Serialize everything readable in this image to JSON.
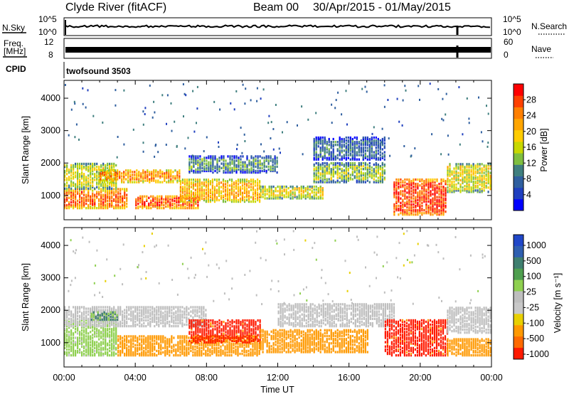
{
  "header": {
    "station": "Clyde River (fitACF)",
    "beam": "Beam 00",
    "date_range": "30/Apr/2015 - 01/May/2015"
  },
  "strips": {
    "nsky_label": "N.Sky",
    "nsky_ticks": [
      "10^5",
      "10^0"
    ],
    "nsearch_label": "N.Search",
    "nsearch_ticks": [
      "10^5",
      "10^0"
    ],
    "freq_label_1": "Freq.",
    "freq_label_2": "[MHz]",
    "freq_ticks": [
      "12",
      "8"
    ],
    "nave_label": "Nave",
    "nave_ticks": [
      "60",
      "0"
    ],
    "cpid_label": "CPID",
    "cpid_value": "twofsound 3503"
  },
  "colors": {
    "power": [
      "#0000ff",
      "#1f3fbf",
      "#2f5f9f",
      "#3f7f7f",
      "#7fbf3f",
      "#c8d800",
      "#ffcc00",
      "#ffa500",
      "#ff7f00",
      "#ff4000",
      "#ff0000"
    ],
    "velocity": [
      "#2047c8",
      "#2f5fb0",
      "#3f7f6f",
      "#4f9f4f",
      "#8fd050",
      "#bebebe",
      "#c8c8c8",
      "#e8d000",
      "#ff9900",
      "#ff6a00",
      "#ff1a00"
    ]
  },
  "chart_data": [
    {
      "type": "heatmap",
      "title": "Power",
      "xlabel": "Time UT",
      "ylabel": "Slant Range [km]",
      "xlim": [
        "00:00",
        "24:00"
      ],
      "ylim": [
        250,
        4550
      ],
      "x_ticks": [
        "00:00",
        "04:00",
        "08:00",
        "12:00",
        "16:00",
        "20:00",
        "00:00"
      ],
      "y_ticks": [
        1000,
        2000,
        3000,
        4000
      ],
      "colorbar": {
        "label": "Power [dB]",
        "ticks": [
          4,
          8,
          12,
          16,
          20,
          24,
          28
        ],
        "range": [
          0,
          32
        ]
      },
      "bands": [
        {
          "t0": 0.0,
          "t1": 3.5,
          "r0": 600,
          "r1": 1200,
          "level": 26
        },
        {
          "t0": 0.0,
          "t1": 3.0,
          "r0": 1200,
          "r1": 2000,
          "level": 16
        },
        {
          "t0": 2.0,
          "t1": 6.5,
          "r0": 1400,
          "r1": 1800,
          "level": 24
        },
        {
          "t0": 4.0,
          "t1": 7.5,
          "r0": 600,
          "r1": 1000,
          "level": 28
        },
        {
          "t0": 6.5,
          "t1": 11.0,
          "r0": 800,
          "r1": 1500,
          "level": 22
        },
        {
          "t0": 7.0,
          "t1": 12.0,
          "r0": 1700,
          "r1": 2200,
          "level": 10
        },
        {
          "t0": 11.0,
          "t1": 14.5,
          "r0": 900,
          "r1": 1300,
          "level": 18
        },
        {
          "t0": 14.0,
          "t1": 18.0,
          "r0": 1400,
          "r1": 2000,
          "level": 14
        },
        {
          "t0": 14.0,
          "t1": 18.0,
          "r0": 2100,
          "r1": 2800,
          "level": 7
        },
        {
          "t0": 18.5,
          "t1": 21.5,
          "r0": 400,
          "r1": 1500,
          "level": 29
        },
        {
          "t0": 21.5,
          "t1": 24.0,
          "r0": 1100,
          "r1": 2000,
          "level": 17
        }
      ]
    },
    {
      "type": "heatmap",
      "title": "Velocity",
      "xlabel": "Time UT",
      "ylabel": "Slant Range [km]",
      "xlim": [
        "00:00",
        "24:00"
      ],
      "ylim": [
        250,
        4550
      ],
      "x_ticks": [
        "00:00",
        "04:00",
        "08:00",
        "12:00",
        "16:00",
        "20:00",
        "00:00"
      ],
      "y_ticks": [
        1000,
        2000,
        3000,
        4000
      ],
      "colorbar": {
        "label": "Velocity [m s⁻¹]",
        "ticks": [
          1000,
          500,
          100,
          25,
          -25,
          -100,
          -500,
          -1000
        ]
      },
      "bands": [
        {
          "t0": 0.0,
          "t1": 3.0,
          "r0": 600,
          "r1": 1700,
          "level": 50
        },
        {
          "t0": 0.0,
          "t1": 8.0,
          "r0": 1500,
          "r1": 2100,
          "level": 0
        },
        {
          "t0": 1.5,
          "t1": 3.0,
          "r0": 1700,
          "r1": 1950,
          "level": 100
        },
        {
          "t0": 3.0,
          "t1": 11.0,
          "r0": 600,
          "r1": 1200,
          "level": -300
        },
        {
          "t0": 7.0,
          "t1": 11.0,
          "r0": 1000,
          "r1": 1700,
          "level": -700
        },
        {
          "t0": 11.0,
          "t1": 17.0,
          "r0": 700,
          "r1": 1400,
          "level": -300
        },
        {
          "t0": 12.0,
          "t1": 18.5,
          "r0": 1500,
          "r1": 2200,
          "level": 0
        },
        {
          "t0": 18.0,
          "t1": 21.5,
          "r0": 600,
          "r1": 1700,
          "level": -700
        },
        {
          "t0": 21.5,
          "t1": 24.0,
          "r0": 600,
          "r1": 1100,
          "level": -300
        },
        {
          "t0": 21.5,
          "t1": 24.0,
          "r0": 1300,
          "r1": 2100,
          "level": 0
        }
      ]
    }
  ]
}
